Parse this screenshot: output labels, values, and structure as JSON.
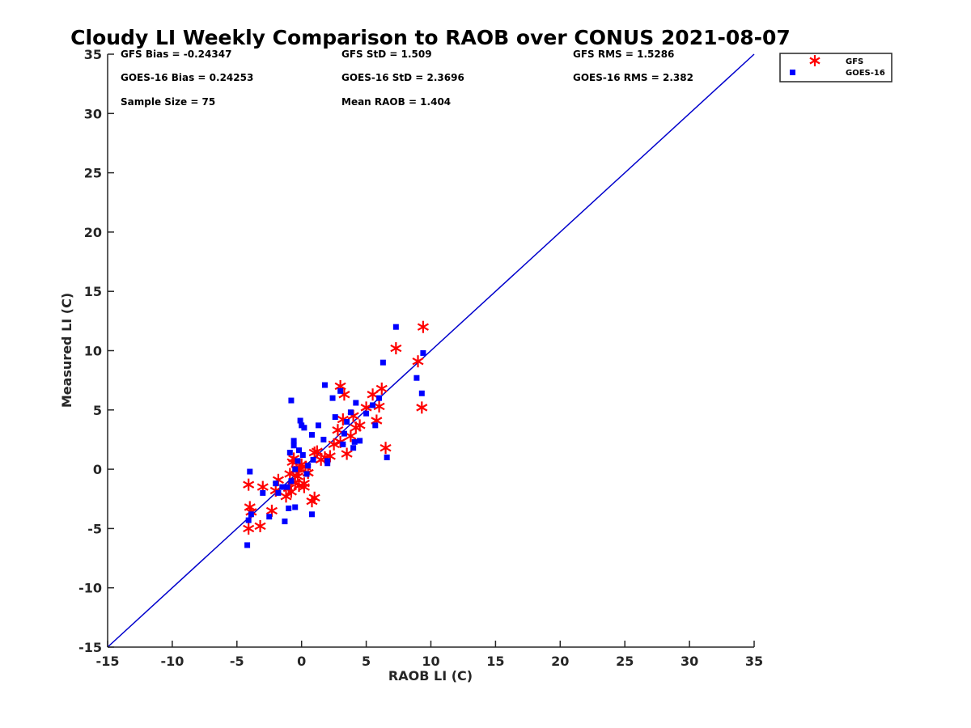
{
  "chart_data": {
    "type": "scatter",
    "title": "Cloudy LI Weekly Comparison to RAOB over CONUS 2021-08-07",
    "xlabel": "RAOB LI (C)",
    "ylabel": "Measured LI (C)",
    "xlim": [
      -15,
      35
    ],
    "ylim": [
      -15,
      35
    ],
    "xticks": [
      "-15",
      "-10",
      "-5",
      "0",
      "5",
      "10",
      "15",
      "20",
      "25",
      "30",
      "35"
    ],
    "yticks": [
      "-15",
      "-10",
      "-5",
      "0",
      "5",
      "10",
      "15",
      "20",
      "25",
      "30",
      "35"
    ],
    "grid": false,
    "legend_position": "outside-top-right",
    "reference_line": {
      "x": [
        -15,
        35
      ],
      "y": [
        -15,
        35
      ],
      "color": "#0000cc"
    },
    "stats": [
      [
        "GFS Bias = -0.24347",
        "GFS StD = 1.509",
        "GFS RMS = 1.5286"
      ],
      [
        "GOES-16 Bias = 0.24253",
        "GOES-16 StD = 2.3696",
        "GOES-16 RMS = 2.382"
      ],
      [
        "Sample Size = 75",
        "Mean RAOB = 1.404",
        ""
      ]
    ],
    "series": [
      {
        "name": "GFS",
        "marker": "asterisk",
        "color": "#ff0000",
        "x": [
          -4.0,
          -4.1,
          -3.2,
          -2.3,
          -3.9,
          -4.1,
          -3.0,
          -1.8,
          -2.0,
          -1.2,
          -1.0,
          -0.8,
          -0.5,
          -0.3,
          -0.2,
          0.0,
          0.2,
          -0.6,
          -0.9,
          0.3,
          0.5,
          0.8,
          1.0,
          1.2,
          1.5,
          1.0,
          1.8,
          2.2,
          2.5,
          2.8,
          3.0,
          3.2,
          3.5,
          3.8,
          4.0,
          4.2,
          4.5,
          5.0,
          5.5,
          5.8,
          6.0,
          6.2,
          6.5,
          3.0,
          3.3,
          7.3,
          9.4,
          9.0,
          9.3,
          -0.4,
          0.2,
          -0.7,
          -0.2
        ],
        "y": [
          -3.2,
          -5.0,
          -4.8,
          -3.5,
          -3.6,
          -1.3,
          -1.5,
          -0.9,
          -1.8,
          -2.3,
          -1.6,
          -1.9,
          -1.1,
          -0.6,
          -1.4,
          0.4,
          -1.5,
          0.9,
          -0.4,
          0.2,
          -0.3,
          -2.7,
          -2.4,
          1.5,
          0.8,
          1.4,
          1.0,
          1.1,
          2.1,
          3.3,
          2.3,
          4.2,
          1.3,
          2.8,
          4.5,
          3.5,
          3.7,
          5.2,
          6.3,
          4.1,
          5.3,
          6.8,
          1.8,
          7.0,
          6.3,
          10.2,
          12.0,
          9.1,
          5.2,
          0.0,
          -1.2,
          0.6,
          0.0
        ]
      },
      {
        "name": "GOES-16",
        "marker": "square",
        "color": "#0000ff",
        "x": [
          -4.0,
          -4.1,
          -4.2,
          -3.9,
          -3.0,
          -2.5,
          -2.0,
          -1.8,
          -1.5,
          -1.3,
          -1.0,
          -0.8,
          -0.9,
          -0.6,
          -0.5,
          -0.5,
          -0.2,
          0.0,
          0.2,
          0.5,
          0.8,
          0.8,
          1.3,
          1.7,
          2.0,
          2.4,
          2.6,
          3.0,
          3.3,
          3.5,
          3.8,
          4.0,
          4.2,
          4.5,
          5.0,
          5.5,
          5.7,
          6.0,
          6.3,
          6.6,
          7.3,
          8.9,
          9.3,
          9.4,
          -0.8,
          -0.6,
          0.1,
          1.8,
          2.0,
          3.2,
          4.1,
          -0.3,
          -1.1,
          0.9,
          -0.1,
          0.4
        ],
        "y": [
          -0.2,
          -4.3,
          -6.4,
          -3.8,
          -2.0,
          -4.0,
          -1.2,
          -2.0,
          -1.5,
          -4.4,
          -3.3,
          -1.0,
          1.4,
          2.4,
          0.0,
          -3.2,
          1.6,
          3.7,
          3.5,
          0.3,
          2.9,
          -3.8,
          3.7,
          2.5,
          0.5,
          6.0,
          4.4,
          6.6,
          3.0,
          4.0,
          4.8,
          1.8,
          5.6,
          2.4,
          4.7,
          5.4,
          3.7,
          6.0,
          9.0,
          1.0,
          12.0,
          7.7,
          6.4,
          9.8,
          5.8,
          2.0,
          1.2,
          7.1,
          0.7,
          2.1,
          2.3,
          0.7,
          -1.5,
          0.8,
          4.1,
          -0.4
        ]
      }
    ]
  }
}
